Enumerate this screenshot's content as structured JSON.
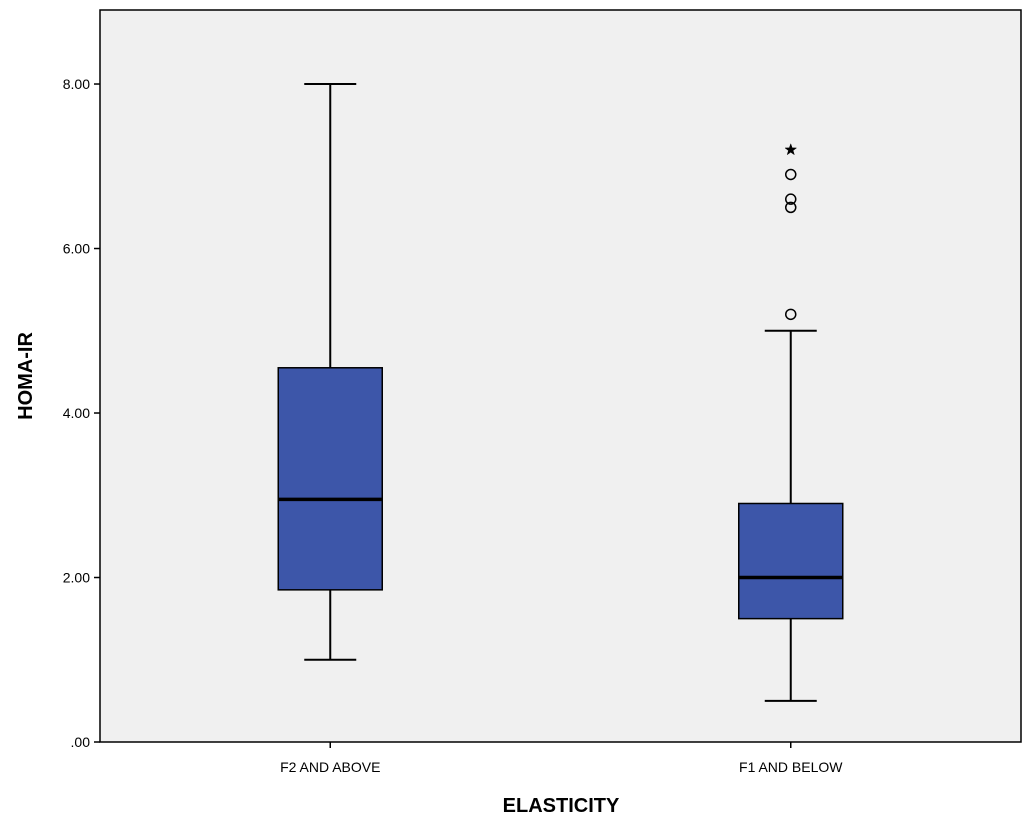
{
  "chart_data": {
    "type": "boxplot",
    "title": "",
    "xlabel": "ELASTICITY",
    "ylabel": "HOMA-IR",
    "ylim": [
      0,
      8.9
    ],
    "yticks": [
      0,
      2,
      4,
      6,
      8
    ],
    "ytick_labels": [
      ".00",
      "2.00",
      "4.00",
      "6.00",
      "8.00"
    ],
    "grid": false,
    "legend": "none",
    "colors": {
      "box_fill": "#3d56a9",
      "plot_background": "#f0f0f0",
      "line": "#000000"
    },
    "categories": [
      "F2 AND ABOVE",
      "F1 AND BELOW"
    ],
    "boxes": [
      {
        "category": "F2 AND ABOVE",
        "whisker_low": 1.0,
        "q1": 1.85,
        "median": 2.95,
        "q3": 4.55,
        "whisker_high": 8.0,
        "outliers": [],
        "extremes": []
      },
      {
        "category": "F1 AND BELOW",
        "whisker_low": 0.5,
        "q1": 1.5,
        "median": 2.0,
        "q3": 2.9,
        "whisker_high": 5.0,
        "outliers": [
          5.2,
          6.5,
          6.6,
          6.9
        ],
        "extremes": [
          7.2
        ]
      }
    ]
  }
}
